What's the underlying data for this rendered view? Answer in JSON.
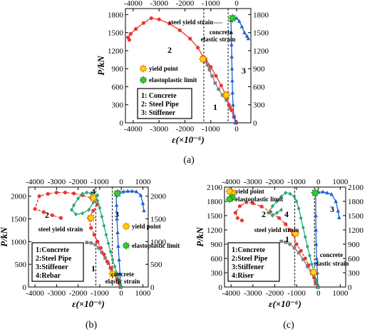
{
  "chart_data": [
    {
      "id": "a",
      "type": "line",
      "panel_label": "(a)",
      "xlabel": "ε(×10⁻⁶)",
      "ylabel": "P/kN",
      "xlim": [
        -4300,
        550
      ],
      "ylim": [
        0,
        1900
      ],
      "x_ticks": [
        -4000,
        -3000,
        -2000,
        -1000,
        0
      ],
      "y_ticks": [
        0,
        300,
        600,
        900,
        1200,
        1500,
        1800
      ],
      "x_tick_labels": [
        "-4000",
        "-3000",
        "-2000",
        "-1000",
        "0"
      ],
      "y_tick_labels": [
        "0",
        "300",
        "600",
        "900",
        "1200",
        "1500",
        "1800"
      ],
      "series": [
        {
          "name": "Concrete",
          "number": "1",
          "color": "#7f7f7f",
          "marker": "square",
          "x": [
            -20,
            -100,
            -250,
            -400,
            -550,
            -700,
            -830,
            -950,
            -1050,
            -1130,
            -1200,
            -1260
          ],
          "y": [
            0,
            100,
            250,
            380,
            460,
            560,
            660,
            780,
            880,
            960,
            1020,
            1050
          ]
        },
        {
          "name": "Steel Pipe",
          "number": "2",
          "color": "#ee3333",
          "marker": "circle",
          "x": [
            0,
            -100,
            -200,
            -300,
            -400,
            -600,
            -800,
            -1000,
            -1200,
            -1300,
            -1500,
            -1800,
            -2200,
            -2600,
            -3000,
            -3300,
            -3600,
            -3900,
            -4100,
            -4200,
            -4150
          ],
          "y": [
            0,
            100,
            210,
            300,
            450,
            620,
            780,
            930,
            1060,
            1100,
            1250,
            1400,
            1540,
            1650,
            1720,
            1740,
            1660,
            1560,
            1480,
            1420,
            1380
          ]
        },
        {
          "name": "Stiffener",
          "number": "3",
          "color": "#1f5fd0",
          "marker": "triangle",
          "x": [
            -50,
            -100,
            -140,
            -160,
            -170,
            -180,
            -190,
            -200,
            -210,
            -220,
            -180,
            -100,
            0,
            100,
            200,
            300,
            400,
            450
          ],
          "y": [
            0,
            100,
            300,
            500,
            700,
            900,
            1100,
            1300,
            1500,
            1700,
            1740,
            1760,
            1740,
            1690,
            1600,
            1500,
            1440,
            1400
          ]
        }
      ],
      "yield_points": [
        {
          "x": -1300,
          "y": 1060
        },
        {
          "x": -400,
          "y": 460
        }
      ],
      "elastoplastic_points": [
        {
          "x": -160,
          "y": 1740
        }
      ],
      "vlines": [
        {
          "x": -1270,
          "label": "steel yield strain"
        },
        {
          "x": -330,
          "label": "concrete elastic strain"
        }
      ],
      "legend_box": [
        "1: Concrete",
        "2: Steel Pipe",
        "3: Stiffener"
      ],
      "legend_markers": [
        "yield point",
        "elastoplastic limit"
      ]
    },
    {
      "id": "b",
      "type": "line",
      "panel_label": "(b)",
      "xlabel": "ε(×10⁻⁶)",
      "ylabel": "P/kN",
      "xlim": [
        -4300,
        1250
      ],
      "ylim": [
        0,
        2200
      ],
      "x_ticks": [
        -4000,
        -3000,
        -2000,
        -1000,
        0,
        1000
      ],
      "y_ticks": [
        0,
        500,
        1000,
        1500,
        2000
      ],
      "x_tick_labels": [
        "-4000",
        "-3000",
        "-2000",
        "-1000",
        "0",
        "1000"
      ],
      "y_tick_labels": [
        "0",
        "500",
        "1000",
        "1500",
        "2000"
      ],
      "series": [
        {
          "name": "Concrete",
          "number": "1",
          "color": "#7f7f7f",
          "marker": "square",
          "x": [
            -50,
            -150,
            -300,
            -450,
            -600,
            -750,
            -900,
            -1050,
            -1200,
            -1400,
            -1600
          ],
          "y": [
            0,
            150,
            300,
            400,
            520,
            640,
            760,
            860,
            930,
            970,
            980
          ]
        },
        {
          "name": "Steel Pipe",
          "number": "2",
          "color": "#ee3333",
          "marker": "circle",
          "x": [
            0,
            -100,
            -200,
            -350,
            -500,
            -650,
            -800,
            -950,
            -1100,
            -1250,
            -1400,
            -1500,
            -1300,
            -1100,
            -1400,
            -1800,
            -2200,
            -2600,
            -3000,
            -3400,
            -3800,
            -4000,
            -3600,
            -3200,
            -2800
          ],
          "y": [
            0,
            80,
            180,
            280,
            420,
            560,
            720,
            860,
            1000,
            1150,
            1300,
            1520,
            1680,
            1820,
            1960,
            2020,
            2060,
            2080,
            2080,
            2050,
            2000,
            1720,
            1650,
            1580,
            1520
          ]
        },
        {
          "name": "Stiffener",
          "number": "3",
          "color": "#1f5fd0",
          "marker": "triangle",
          "x": [
            -30,
            -60,
            -100,
            -140,
            -170,
            -200,
            -220,
            -240,
            -230,
            -100,
            100,
            300,
            500,
            700,
            900,
            1000,
            1050
          ],
          "y": [
            0,
            300,
            600,
            900,
            1200,
            1500,
            1800,
            2040,
            2080,
            2090,
            2100,
            2110,
            2110,
            2100,
            2020,
            1840,
            1680
          ]
        },
        {
          "name": "Rebar",
          "number": "4",
          "color": "#2aa87a",
          "marker": "diamond",
          "x": [
            0,
            -100,
            -200,
            -300,
            -400,
            -500,
            -600,
            -700,
            -800,
            -900,
            -1000,
            -1100,
            -1200,
            -1400,
            -1600,
            -1800,
            -2000,
            -2200,
            -2300,
            -2100,
            -1800,
            -1500,
            -1300,
            -1100
          ],
          "y": [
            0,
            150,
            300,
            450,
            600,
            780,
            960,
            1150,
            1350,
            1550,
            1740,
            1900,
            1980,
            2060,
            2080,
            2050,
            1950,
            1800,
            1700,
            1600,
            1620,
            1700,
            1860,
            2020
          ]
        }
      ],
      "yield_points": [
        {
          "x": -1300,
          "y": 1960
        },
        {
          "x": -1400,
          "y": 1520
        },
        {
          "x": -400,
          "y": 290
        }
      ],
      "elastoplastic_points": [
        {
          "x": -180,
          "y": 2060
        }
      ],
      "vlines": [
        {
          "x": -1180,
          "label": "steel yield strain"
        },
        {
          "x": -420,
          "label": "concrete elastic strain"
        }
      ],
      "legend_box": [
        "1:Concrete",
        "2:Steel Pipe",
        "3:Stiffener",
        "4:Rebar"
      ],
      "legend_markers": [
        "yield point",
        "elastoplastic limit"
      ]
    },
    {
      "id": "c",
      "type": "line",
      "panel_label": "(c)",
      "xlabel": "ε(×10⁻⁶)",
      "ylabel": "P/kN",
      "xlim": [
        -4300,
        1250
      ],
      "ylim": [
        0,
        2100
      ],
      "x_ticks": [
        -4000,
        -3000,
        -2000,
        -1000,
        0,
        1000
      ],
      "y_ticks": [
        0,
        300,
        600,
        900,
        1200,
        1500,
        1800,
        2100
      ],
      "x_tick_labels": [
        "-4000",
        "-3000",
        "-2000",
        "-1000",
        "0",
        "1000"
      ],
      "y_tick_labels": [
        "0",
        "300",
        "600",
        "900",
        "1200",
        "1500",
        "1800",
        "2100"
      ],
      "series": [
        {
          "name": "Concrete",
          "number": "1",
          "color": "#7f7f7f",
          "marker": "square",
          "x": [
            -50,
            -150,
            -300,
            -500,
            -700,
            -900,
            -1100,
            -1300,
            -1500,
            -1700
          ],
          "y": [
            0,
            120,
            280,
            430,
            580,
            720,
            820,
            900,
            940,
            960
          ]
        },
        {
          "name": "Steel Pipe",
          "number": "2",
          "color": "#ee3333",
          "marker": "circle",
          "x": [
            0,
            -100,
            -200,
            -300,
            -450,
            -600,
            -800,
            -1000,
            -1150,
            -1300,
            -1500,
            -1800,
            -2200,
            -2600,
            -3000,
            -3300,
            -3600,
            -3800,
            -3700,
            -3500
          ],
          "y": [
            0,
            80,
            200,
            320,
            460,
            600,
            760,
            900,
            1100,
            1200,
            1320,
            1450,
            1580,
            1690,
            1760,
            1780,
            1700,
            1560,
            1450,
            1400
          ]
        },
        {
          "name": "Stiffener",
          "number": "3",
          "color": "#1f5fd0",
          "marker": "triangle",
          "x": [
            -20,
            -50,
            -80,
            -100,
            -110,
            -120,
            -120,
            0,
            200,
            400,
            600,
            800,
            900,
            950
          ],
          "y": [
            0,
            300,
            600,
            900,
            1200,
            1500,
            1980,
            1990,
            2000,
            1980,
            1950,
            1800,
            1600,
            1460
          ]
        },
        {
          "name": "Riser",
          "number": "4",
          "color": "#2aa87a",
          "marker": "diamond",
          "x": [
            0,
            -100,
            -200,
            -300,
            -400,
            -500,
            -600,
            -700,
            -800,
            -900,
            -1000,
            -1100,
            -1300,
            -1500,
            -1700,
            -1900,
            -2100,
            -2300,
            -2100,
            -1900,
            -1700
          ],
          "y": [
            0,
            150,
            300,
            480,
            660,
            850,
            1050,
            1250,
            1450,
            1650,
            1800,
            1900,
            1960,
            1980,
            1900,
            1800,
            1700,
            1560,
            1500,
            1560,
            1620
          ]
        }
      ],
      "yield_points": [
        {
          "x": -3950,
          "y": 1980
        },
        {
          "x": -1050,
          "y": 1130
        },
        {
          "x": -220,
          "y": 310
        }
      ],
      "elastoplastic_points": [
        {
          "x": -3950,
          "y": 1880
        },
        {
          "x": -150,
          "y": 1980
        }
      ],
      "vlines": [
        {
          "x": -1080,
          "label": "steel yield strain"
        },
        {
          "x": -180,
          "label": "concrete elastic strain"
        }
      ],
      "legend_box": [
        "1:Concrete",
        "2:Steel Pipe",
        "3:Stiffener",
        "4:Riser"
      ],
      "legend_markers": [
        "yield point",
        "elastoplastic limit"
      ]
    }
  ],
  "annotations": {
    "a": {
      "steel_yield": "steel yield strain",
      "concrete_line1": "concrete",
      "concrete_line2": "elastic strain",
      "yield_point": "yield point",
      "elastoplastic": "elastoplastic limit",
      "curve_labels": [
        "1",
        "2",
        "3"
      ]
    },
    "b": {
      "steel_yield": "steel yield strain",
      "concrete_line1": "concrete",
      "concrete_line2": "elastic strain",
      "yield_point": "yield point",
      "elastoplastic": "elastoplastic limit",
      "curve_labels": [
        "1",
        "2",
        "3",
        "4"
      ]
    },
    "c": {
      "steel_yield": "steel yield strain",
      "concrete_line1": "concrete",
      "concrete_line2": "elastic strain",
      "yield_point": "yield point",
      "elastoplastic": "elastoplastic limit",
      "curve_labels": [
        "1",
        "2",
        "3",
        "4"
      ]
    }
  },
  "colors": {
    "yield_fill": "#ffd700",
    "yield_stroke": "#e07000",
    "elastoplastic_fill": "#33cc33",
    "axis": "#000000"
  }
}
